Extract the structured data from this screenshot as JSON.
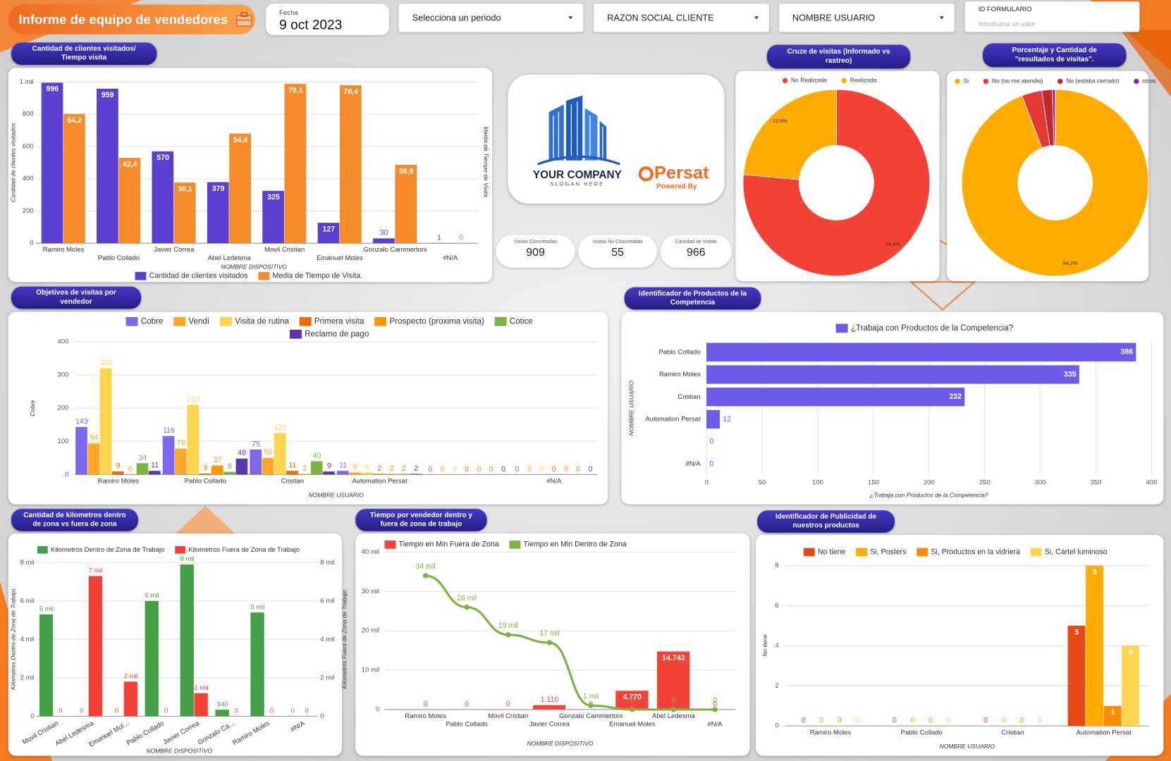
{
  "header": {
    "title": "Informe de equipo de vendedores",
    "date_label": "Fecha",
    "date": "9 oct 2023"
  },
  "filters": [
    {
      "label": "Selecciona un periodo"
    },
    {
      "label": "RAZON SOCIAL CLIENTE"
    },
    {
      "label": "NOMBRE USUARIO"
    },
    {
      "label": "ID FORMULARIO",
      "placeholder": "Introduzca un valor"
    }
  ],
  "logo": {
    "company": "YOUR COMPANY",
    "slogan": "SLOGAN HERE",
    "brand": "Persat",
    "powered": "Powered By"
  },
  "kpis": [
    {
      "label": "Visitas Concretadas",
      "value": 909
    },
    {
      "label": "Visitas No Concretadas",
      "value": 55
    },
    {
      "label": "Cantidad de Visitas",
      "value": 966
    }
  ],
  "chart_data": [
    {
      "type": "bar",
      "title": "Cantidad de clientes visitados/ Tiempo visita",
      "categories": [
        "Ramiro Moles",
        "Pablo Collado",
        "Javier Correa",
        "Abel Ledesma",
        "Movil Cristian",
        "Emanuel Moles",
        "Gonzalo Cammertoni",
        "#N/A"
      ],
      "series": [
        {
          "name": "Cantidad de clientes visitados",
          "color": "#5b3fd1",
          "values": [
            996,
            959,
            570,
            379,
            325,
            127,
            30,
            1
          ]
        },
        {
          "name": "Media de Tiempo de Visita.",
          "color": "#f68b2a",
          "axis": "y2",
          "values": [
            64.2,
            42.4,
            30.1,
            54.4,
            79.1,
            78.4,
            38.9,
            0
          ],
          "value_labels": [
            "64,2",
            "42,4",
            "30,1",
            "54,4",
            "79,1",
            "78,4",
            "38,9",
            "0"
          ]
        }
      ],
      "ylim": [
        0,
        1000
      ],
      "yticks": [
        0,
        200,
        400,
        600,
        800,
        {
          "value": 1000,
          "label": "1 mil"
        }
      ],
      "y2lim": [
        0,
        80
      ],
      "xlabel": "NOMBRE DISPOSITIVO",
      "ylabel": "Cantidad de clientes visitados",
      "y2label": "Media de Tiempo de Visita.",
      "grid": true
    },
    {
      "type": "donut",
      "title": "Cruze de visitas (Informado vs rastreo)",
      "categories": [
        "No Realizada",
        "Realizada"
      ],
      "values": [
        76.4,
        23.6
      ],
      "value_labels": [
        "76,4%",
        "23,6%"
      ],
      "colors": [
        "#f44336",
        "#ffab00"
      ]
    },
    {
      "type": "donut",
      "title": "Porcentaje y Cantidad de \"resultados de visitas\".",
      "categories": [
        "Si",
        "No (no me atendio)",
        "No (estaba cerrado)",
        "otros"
      ],
      "values": [
        94.2,
        3.5,
        1.8,
        0.5
      ],
      "value_labels": [
        "94,2%",
        null,
        null,
        null
      ],
      "colors": [
        "#ffab00",
        "#e53935",
        "#c62828",
        "#8e24aa"
      ]
    },
    {
      "type": "bar",
      "title": "Objetivos de visitas por vendedor",
      "categories": [
        "Ramiro Moles",
        "Pablo Collado",
        "Cristian",
        "Automation Persat",
        null,
        "#N/A"
      ],
      "series": [
        {
          "name": "Cobre",
          "color": "#7b68ee",
          "values": [
            143,
            116,
            75,
            11,
            0,
            0
          ]
        },
        {
          "name": "Vendí",
          "color": "#ffa726",
          "values": [
            94,
            78,
            50,
            6,
            0,
            0
          ]
        },
        {
          "name": "Visita de rutina",
          "color": "#ffd54f",
          "values": [
            320,
            210,
            125,
            6,
            0,
            0
          ]
        },
        {
          "name": "Primera visita",
          "color": "#ef6c00",
          "values": [
            9,
            3,
            11,
            2,
            0,
            0
          ]
        },
        {
          "name": "Prospecto (proxima visita)",
          "color": "#ff9800",
          "values": [
            0,
            27,
            2,
            2,
            0,
            0
          ]
        },
        {
          "name": "Cotice",
          "color": "#7cb342",
          "values": [
            34,
            8,
            40,
            2,
            0,
            0
          ]
        },
        {
          "name": "Reclamo de pago",
          "color": "#5e35b1",
          "values": [
            11,
            48,
            9,
            2,
            0,
            0
          ]
        }
      ],
      "ylim": [
        0,
        400
      ],
      "yticks": [
        0,
        100,
        200,
        300,
        400
      ],
      "xlabel": "NOMBRE USUARIO",
      "ylabel": "Cobre",
      "grid": true
    },
    {
      "type": "hbar",
      "title": "Identificador de Productos de la Competencia",
      "categories": [
        "Pablo Collado",
        "Ramiro Moles",
        "Cristian",
        "Automation Persat",
        null,
        "#N/A"
      ],
      "series": [
        {
          "name": "¿Trabaja con Productos de la Competencia?",
          "color": "#6c5ce7",
          "values": [
            386,
            335,
            232,
            12,
            0,
            0
          ]
        }
      ],
      "xlim": [
        0,
        400
      ],
      "xticks": [
        0,
        50,
        100,
        150,
        200,
        250,
        300,
        350,
        400
      ],
      "xlabel": "¿Trabaja con Productos de la Competencia?",
      "ylabel": "NOMBRE USUARIO",
      "grid": true
    },
    {
      "type": "bar",
      "title": "Cantidad de kilometros dentro de zona vs fuera de zona",
      "categories": [
        "Movil Cristian",
        "Abel Ledesma",
        "Emanuel Mol...",
        "Pablo Collado",
        "Javier Correa",
        "Gonzalo Ca...",
        "Ramiro Moles",
        "#N/A"
      ],
      "series": [
        {
          "name": "Kilometros Dentro de Zona de Trabajo",
          "color": "#43a047",
          "values": [
            5300,
            0,
            0,
            6000,
            7900,
            340,
            5400,
            0
          ],
          "value_labels": [
            "5 mil",
            "0",
            "0",
            "6 mil",
            "8 mil",
            "340",
            "5 mil",
            "0"
          ]
        },
        {
          "name": "Kilometros Fuera de Zona de Trabajo",
          "color": "#f44336",
          "axis": "y2",
          "values": [
            0,
            7300,
            1800,
            0,
            1200,
            0,
            0,
            0
          ],
          "value_labels": [
            "0",
            "7 mil",
            "2 mil",
            "0",
            "1 mil",
            "0",
            "0",
            "0"
          ]
        }
      ],
      "ylim": [
        0,
        8000
      ],
      "yticks": [
        0,
        {
          "value": 2000,
          "label": "2 mil"
        },
        {
          "value": 4000,
          "label": "4 mil"
        },
        {
          "value": 6000,
          "label": "6 mil"
        },
        {
          "value": 8000,
          "label": "8 mil"
        }
      ],
      "y2lim": [
        0,
        8000
      ],
      "y2ticks": [
        0,
        {
          "value": 2000,
          "label": "2 mil"
        },
        {
          "value": 4000,
          "label": "4 mil"
        },
        {
          "value": 6000,
          "label": "6 mil"
        },
        {
          "value": 8000,
          "label": "8 mil"
        }
      ],
      "xlabel": "NOMBRE DISPOSITIVO",
      "ylabel": "Kilometros Dentro de Zona de Trabajo",
      "y2label": "Kilometros Fuera de Zona de Trabajo",
      "grid": true
    },
    {
      "type": "bar",
      "title": "Tiempo por vendedor dentro y fuera de zona de trabajo",
      "categories": [
        "Ramiro Moles",
        "Pablo Collado",
        "Movil Cristian",
        "Javier Correa",
        "Gonzalo Cammertoni",
        "Emanuel Moles",
        "Abel Ledesma",
        "#N/A"
      ],
      "series": [
        {
          "name": "Tiempo en Min Fuera de Zona",
          "color": "#f44336",
          "values": [
            0,
            0,
            0,
            1110,
            0,
            4770,
            14742,
            0
          ],
          "value_labels": [
            "0",
            "0",
            "0",
            "1.110",
            "0",
            "4.770",
            "14.742",
            "0"
          ]
        },
        {
          "name": "Tiempo en Min Dentro de Zona",
          "color": "#7cb342",
          "type": "line",
          "values": [
            34000,
            26000,
            19000,
            17000,
            1000,
            0,
            0,
            0
          ],
          "value_labels": [
            "34 mil",
            "26 mil",
            "19 mil",
            "17 mil",
            "1 mil",
            "0",
            "0",
            "0"
          ]
        }
      ],
      "ylim": [
        0,
        40000
      ],
      "yticks": [
        0,
        {
          "value": 10000,
          "label": "10 mil"
        },
        {
          "value": 20000,
          "label": "20 mil"
        },
        {
          "value": 30000,
          "label": "30 mil"
        },
        {
          "value": 40000,
          "label": "40 mil"
        }
      ],
      "xlabel": "NOMBRE DISPOSITIVO",
      "grid": true
    },
    {
      "type": "bar",
      "title": "Identificador de Publicidad de nuestros productos",
      "categories": [
        "Ramiro Moles",
        "Pablo Collado",
        "Cristian",
        "Automation Persat"
      ],
      "series": [
        {
          "name": "No tiene",
          "color": "#e64a19",
          "values": [
            0,
            0,
            0,
            5
          ]
        },
        {
          "name": "Si, Posters",
          "color": "#ffab00",
          "values": [
            0,
            0,
            0,
            8
          ]
        },
        {
          "name": "Si, Productos en la vidriera",
          "color": "#fb8c00",
          "values": [
            0,
            0,
            0,
            1
          ]
        },
        {
          "name": "Si, Cartel luminoso",
          "color": "#ffd54f",
          "values": [
            0,
            0,
            0,
            4
          ]
        }
      ],
      "ylim": [
        0,
        8
      ],
      "yticks": [
        0,
        2,
        4,
        6,
        8
      ],
      "xlabel": "NOMBRE USUARIO",
      "ylabel": "No tiene",
      "grid": true
    }
  ]
}
